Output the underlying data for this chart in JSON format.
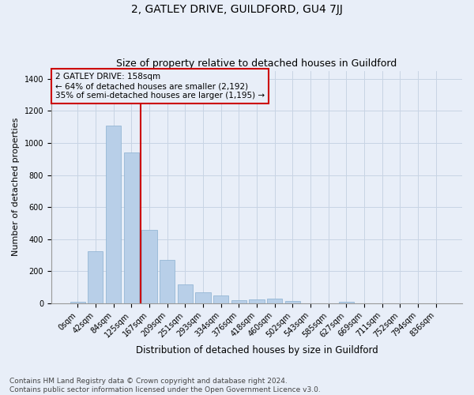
{
  "title": "2, GATLEY DRIVE, GUILDFORD, GU4 7JJ",
  "subtitle": "Size of property relative to detached houses in Guildford",
  "xlabel": "Distribution of detached houses by size in Guildford",
  "ylabel": "Number of detached properties",
  "bar_values": [
    10,
    325,
    1110,
    940,
    460,
    270,
    120,
    70,
    50,
    20,
    25,
    30,
    15,
    0,
    0,
    10,
    0,
    0,
    0,
    0,
    0
  ],
  "bar_labels": [
    "0sqm",
    "42sqm",
    "84sqm",
    "125sqm",
    "167sqm",
    "209sqm",
    "251sqm",
    "293sqm",
    "334sqm",
    "376sqm",
    "418sqm",
    "460sqm",
    "502sqm",
    "543sqm",
    "585sqm",
    "627sqm",
    "669sqm",
    "711sqm",
    "752sqm",
    "794sqm",
    "836sqm"
  ],
  "bar_color": "#b8cfe8",
  "bar_edgecolor": "#8ab0d0",
  "vline_x_index": 4,
  "vline_color": "#cc0000",
  "annotation_box_edgecolor": "#cc0000",
  "annotation_text": "2 GATLEY DRIVE: 158sqm\n← 64% of detached houses are smaller (2,192)\n35% of semi-detached houses are larger (1,195) →",
  "ylim": [
    0,
    1450
  ],
  "yticks": [
    0,
    200,
    400,
    600,
    800,
    1000,
    1200,
    1400
  ],
  "grid_color": "#c8d4e4",
  "background_color": "#e8eef8",
  "footnote": "Contains HM Land Registry data © Crown copyright and database right 2024.\nContains public sector information licensed under the Open Government Licence v3.0.",
  "title_fontsize": 10,
  "subtitle_fontsize": 9,
  "xlabel_fontsize": 8.5,
  "ylabel_fontsize": 8,
  "tick_fontsize": 7,
  "annotation_fontsize": 7.5,
  "footnote_fontsize": 6.5
}
